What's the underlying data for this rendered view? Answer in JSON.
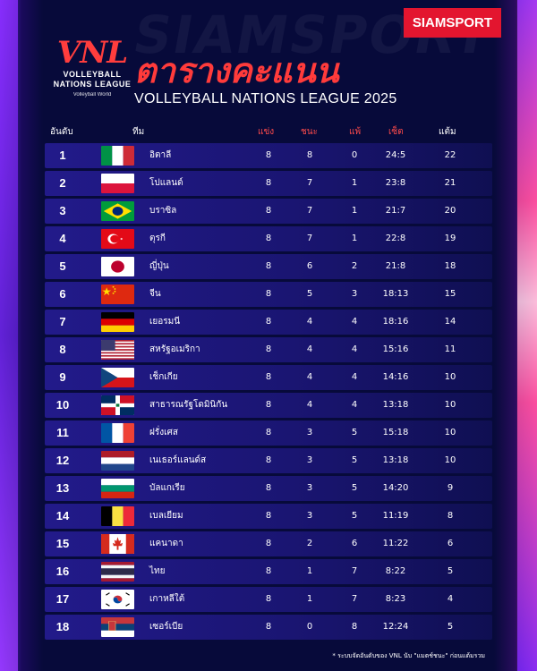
{
  "brand": "SIAMSPORT",
  "watermark": "SIAMSPORT",
  "logo": {
    "mark": "VNL",
    "line1": "VOLLEYBALL",
    "line2": "NATIONS LEAGUE",
    "sub": "Volleyball World"
  },
  "title": "ตารางคะแนน",
  "subtitle": "VOLLEYBALL NATIONS LEAGUE 2025",
  "headers": {
    "rank": "อันดับ",
    "team": "ทีม",
    "played": "แข่ง",
    "won": "ชนะ",
    "lost": "แพ้",
    "sets": "เซ็ต",
    "points": "แต้ม"
  },
  "colors": {
    "accent": "#ff3b3b",
    "badge": "#e3152f",
    "background": "#070a3a",
    "row": "#1d1778"
  },
  "rows": [
    {
      "rank": "1",
      "country": "อิตาลี",
      "flag": "italy-flag",
      "played": "8",
      "won": "8",
      "lost": "0",
      "sets": "24:5",
      "points": "22"
    },
    {
      "rank": "2",
      "country": "โปแลนด์",
      "flag": "poland-flag",
      "played": "8",
      "won": "7",
      "lost": "1",
      "sets": "23:8",
      "points": "21"
    },
    {
      "rank": "3",
      "country": "บราซิล",
      "flag": "brazil-flag",
      "played": "8",
      "won": "7",
      "lost": "1",
      "sets": "21:7",
      "points": "20"
    },
    {
      "rank": "4",
      "country": "ตุรกี",
      "flag": "turkey-flag",
      "played": "8",
      "won": "7",
      "lost": "1",
      "sets": "22:8",
      "points": "19"
    },
    {
      "rank": "5",
      "country": "ญี่ปุ่น",
      "flag": "japan-flag",
      "played": "8",
      "won": "6",
      "lost": "2",
      "sets": "21:8",
      "points": "18"
    },
    {
      "rank": "6",
      "country": "จีน",
      "flag": "china-flag",
      "played": "8",
      "won": "5",
      "lost": "3",
      "sets": "18:13",
      "points": "15"
    },
    {
      "rank": "7",
      "country": "เยอรมนี",
      "flag": "germany-flag",
      "played": "8",
      "won": "4",
      "lost": "4",
      "sets": "18:16",
      "points": "14"
    },
    {
      "rank": "8",
      "country": "สหรัฐอเมริกา",
      "flag": "usa-flag",
      "played": "8",
      "won": "4",
      "lost": "4",
      "sets": "15:16",
      "points": "11"
    },
    {
      "rank": "9",
      "country": "เช็กเกีย",
      "flag": "czechia-flag",
      "played": "8",
      "won": "4",
      "lost": "4",
      "sets": "14:16",
      "points": "10"
    },
    {
      "rank": "10",
      "country": "สาธารณรัฐโดมินิกัน",
      "flag": "dominican-republic-flag",
      "played": "8",
      "won": "4",
      "lost": "4",
      "sets": "13:18",
      "points": "10"
    },
    {
      "rank": "11",
      "country": "ฝรั่งเศส",
      "flag": "france-flag",
      "played": "8",
      "won": "3",
      "lost": "5",
      "sets": "15:18",
      "points": "10"
    },
    {
      "rank": "12",
      "country": "เนเธอร์แลนด์ส",
      "flag": "netherlands-flag",
      "played": "8",
      "won": "3",
      "lost": "5",
      "sets": "13:18",
      "points": "10"
    },
    {
      "rank": "13",
      "country": "บัลแกเรีย",
      "flag": "bulgaria-flag",
      "played": "8",
      "won": "3",
      "lost": "5",
      "sets": "14:20",
      "points": "9"
    },
    {
      "rank": "14",
      "country": "เบลเยียม",
      "flag": "belgium-flag",
      "played": "8",
      "won": "3",
      "lost": "5",
      "sets": "11:19",
      "points": "8"
    },
    {
      "rank": "15",
      "country": "แคนาดา",
      "flag": "canada-flag",
      "played": "8",
      "won": "2",
      "lost": "6",
      "sets": "11:22",
      "points": "6"
    },
    {
      "rank": "16",
      "country": "ไทย",
      "flag": "thailand-flag",
      "played": "8",
      "won": "1",
      "lost": "7",
      "sets": "8:22",
      "points": "5"
    },
    {
      "rank": "17",
      "country": "เกาหลีใต้",
      "flag": "south-korea-flag",
      "played": "8",
      "won": "1",
      "lost": "7",
      "sets": "8:23",
      "points": "4"
    },
    {
      "rank": "18",
      "country": "เซอร์เบีย",
      "flag": "serbia-flag",
      "played": "8",
      "won": "0",
      "lost": "8",
      "sets": "12:24",
      "points": "5"
    }
  ],
  "footnote": "* ระบบจัดอันดับของ VNL นับ \"แมตช์ชนะ\" ก่อนแต้มรวม"
}
